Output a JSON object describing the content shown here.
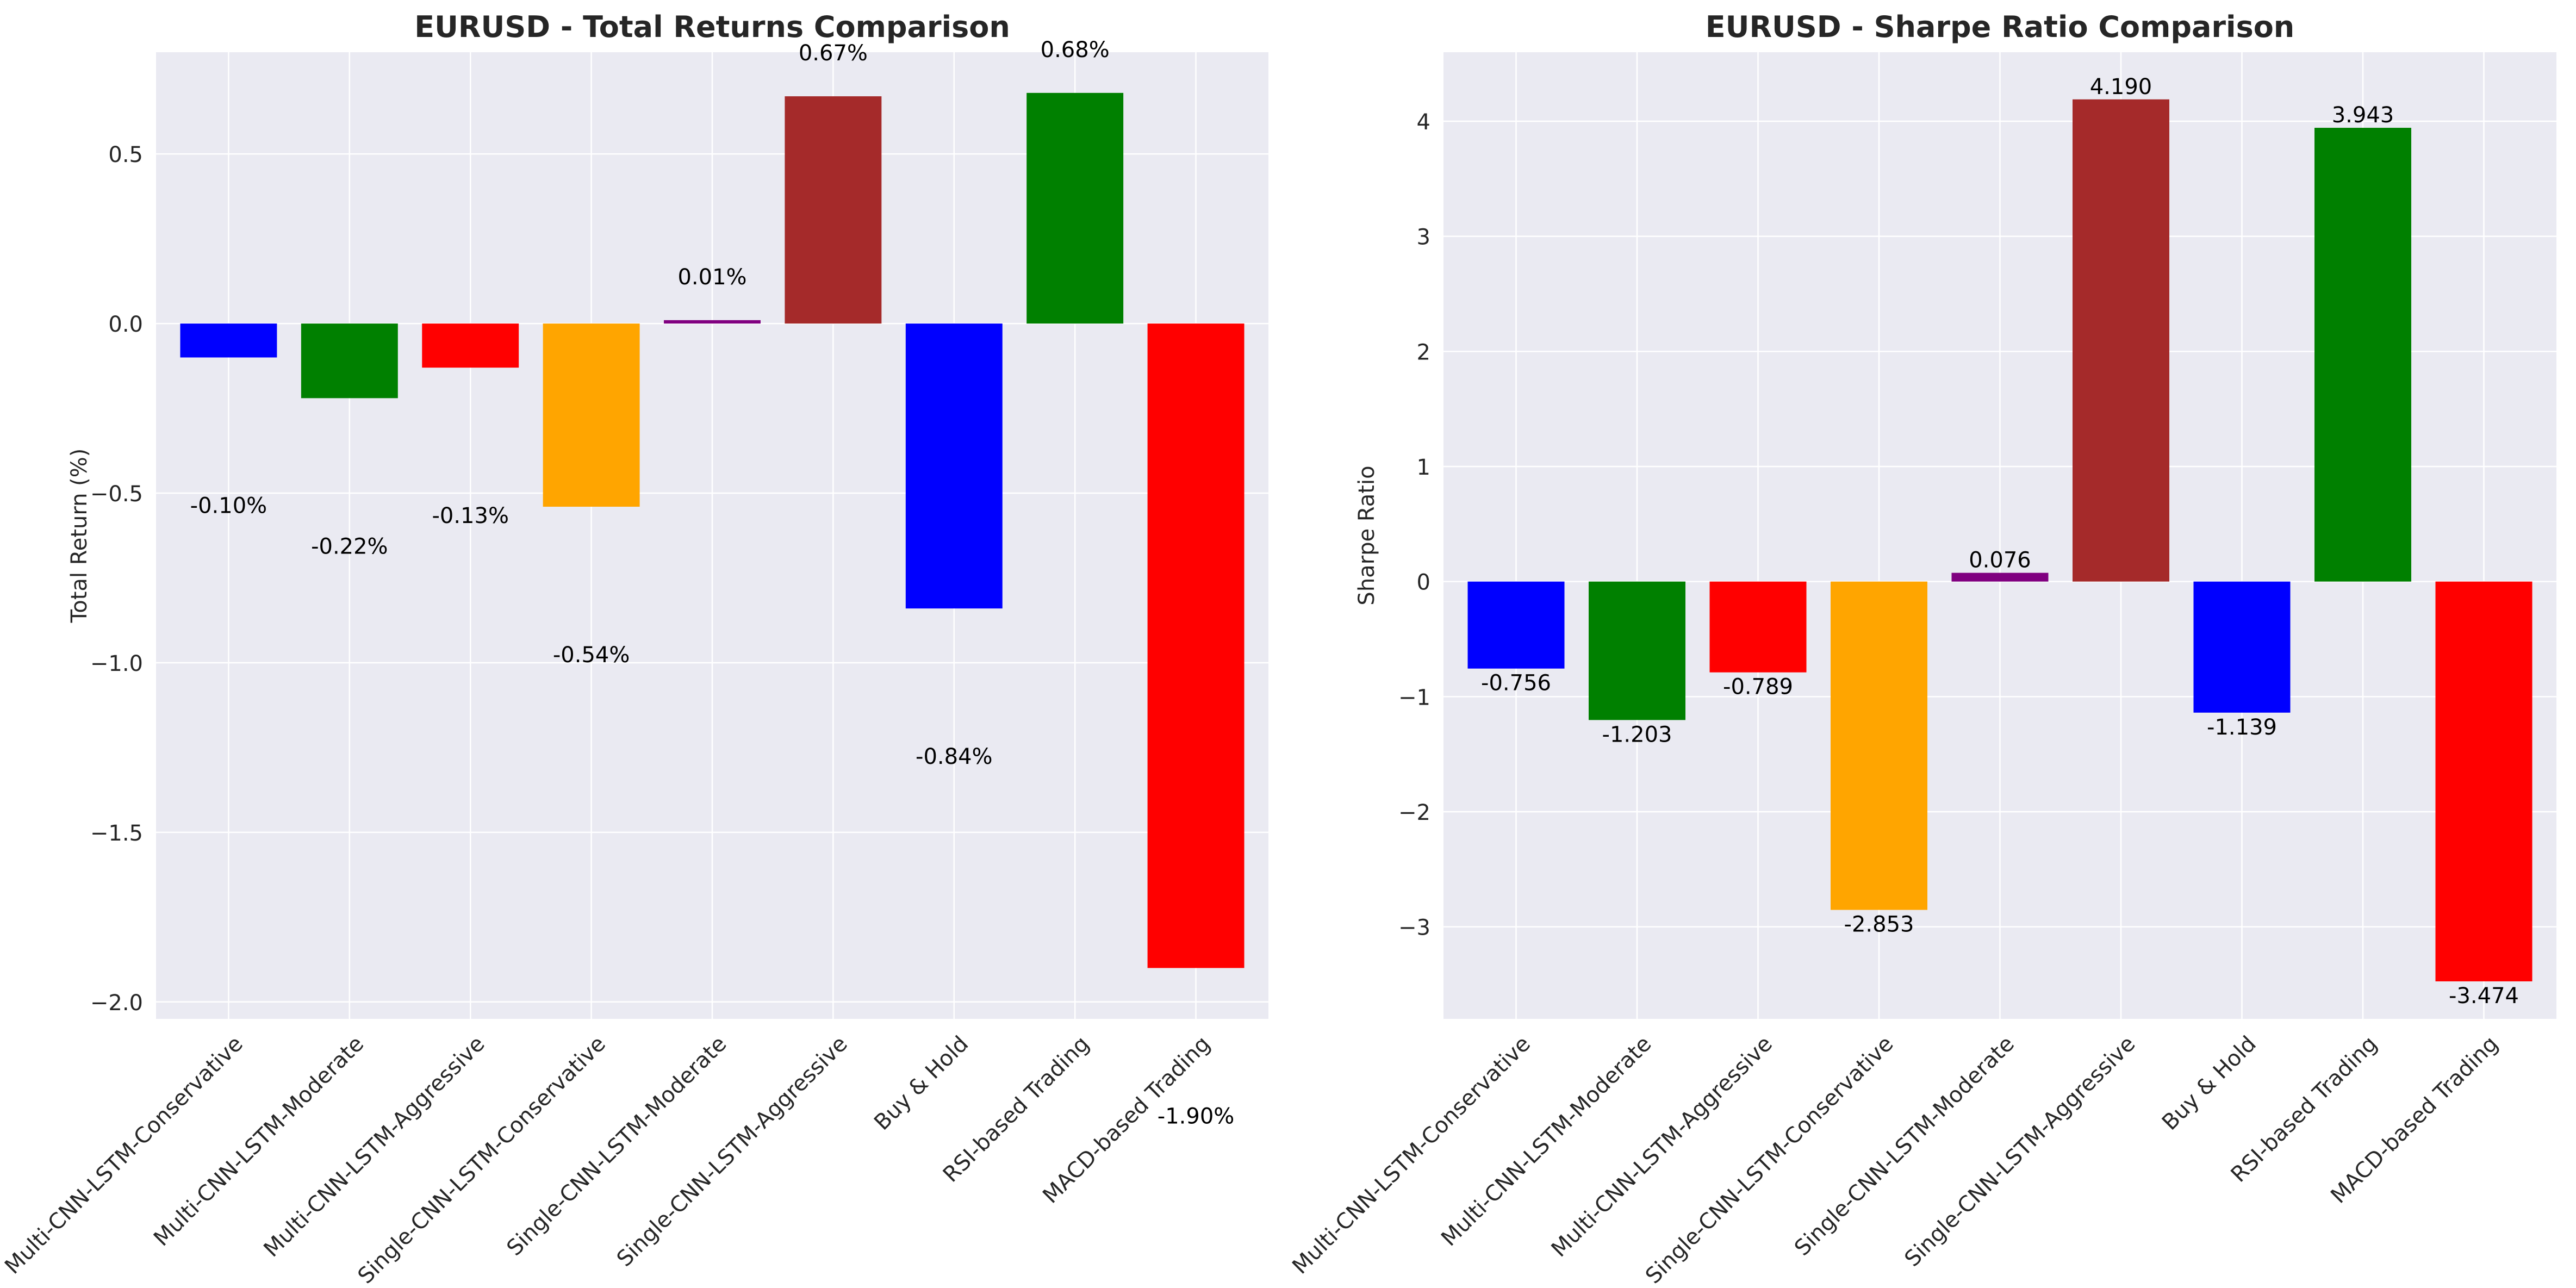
{
  "chart_data": [
    {
      "type": "bar",
      "title": "EURUSD - Total Returns Comparison",
      "xlabel": "",
      "ylabel": "Total Return (%)",
      "ylim": [
        -2.05,
        0.8
      ],
      "yticks": [
        0.5,
        0.0,
        -0.5,
        -1.0,
        -1.5,
        -2.0
      ],
      "ytick_labels": [
        "0.5",
        "0.0",
        "−0.5",
        "−1.0",
        "−1.5",
        "−2.0"
      ],
      "grid": true,
      "categories": [
        "Multi-CNN-LSTM-Conservative",
        "Multi-CNN-LSTM-Moderate",
        "Multi-CNN-LSTM-Aggressive",
        "Single-CNN-LSTM-Conservative",
        "Single-CNN-LSTM-Moderate",
        "Single-CNN-LSTM-Aggressive",
        "Buy & Hold",
        "RSI-based Trading",
        "MACD-based Trading"
      ],
      "values": [
        -0.1,
        -0.22,
        -0.13,
        -0.54,
        0.01,
        0.67,
        -0.84,
        0.68,
        -1.9
      ],
      "value_labels": [
        "-0.10%",
        "-0.22%",
        "-0.13%",
        "-0.54%",
        "0.01%",
        "0.67%",
        "-0.84%",
        "0.68%",
        "-1.90%"
      ],
      "colors": [
        "#0000ff",
        "#008000",
        "#ff0000",
        "#ffa500",
        "#800080",
        "#a52a2a",
        "#0000ff",
        "#008000",
        "#ff0000"
      ]
    },
    {
      "type": "bar",
      "title": "EURUSD - Sharpe Ratio Comparison",
      "xlabel": "",
      "ylabel": "Sharpe Ratio",
      "ylim": [
        -3.8,
        4.6
      ],
      "yticks": [
        4,
        3,
        2,
        1,
        0,
        -1,
        -2,
        -3
      ],
      "ytick_labels": [
        "4",
        "3",
        "2",
        "1",
        "0",
        "−1",
        "−2",
        "−3"
      ],
      "grid": true,
      "categories": [
        "Multi-CNN-LSTM-Conservative",
        "Multi-CNN-LSTM-Moderate",
        "Multi-CNN-LSTM-Aggressive",
        "Single-CNN-LSTM-Conservative",
        "Single-CNN-LSTM-Moderate",
        "Single-CNN-LSTM-Aggressive",
        "Buy & Hold",
        "RSI-based Trading",
        "MACD-based Trading"
      ],
      "values": [
        -0.756,
        -1.203,
        -0.789,
        -2.853,
        0.076,
        4.19,
        -1.139,
        3.943,
        -3.474
      ],
      "value_labels": [
        "-0.756",
        "-1.203",
        "-0.789",
        "-2.853",
        "0.076",
        "4.190",
        "-1.139",
        "3.943",
        "-3.474"
      ],
      "colors": [
        "#0000ff",
        "#008000",
        "#ff0000",
        "#ffa500",
        "#800080",
        "#a52a2a",
        "#0000ff",
        "#008000",
        "#ff0000"
      ]
    }
  ]
}
